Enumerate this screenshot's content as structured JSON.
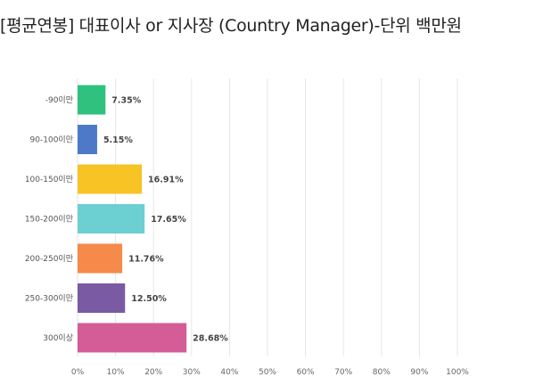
{
  "chart_data": {
    "type": "bar",
    "orientation": "horizontal",
    "title": "[평균연봉] 대표이사 or 지사장 (Country Manager)-단위 백만원",
    "categories": [
      "-90이만",
      "90-100이만",
      "100-150이만",
      "150-200이만",
      "200-250이만",
      "250-300이만",
      "300이상"
    ],
    "values": [
      7.35,
      5.15,
      16.91,
      17.65,
      11.76,
      12.5,
      28.68
    ],
    "data_labels": [
      "7.35%",
      "5.15%",
      "16.91%",
      "17.65%",
      "11.76%",
      "12.50%",
      "28.68%"
    ],
    "colors": [
      "#2ec27e",
      "#4e79c9",
      "#f7c325",
      "#6ccfd1",
      "#f58a4b",
      "#7a5aa3",
      "#d45c97"
    ],
    "xlim": [
      0,
      100
    ],
    "x_ticks": [
      "0%",
      "10%",
      "20%",
      "30%",
      "40%",
      "50%",
      "60%",
      "70%",
      "80%",
      "90%",
      "100%"
    ],
    "x_tick_values": [
      0,
      10,
      20,
      30,
      40,
      50,
      60,
      70,
      80,
      90,
      100
    ],
    "grid": true,
    "grid_color": "#e6e6e6",
    "legend": "none"
  }
}
